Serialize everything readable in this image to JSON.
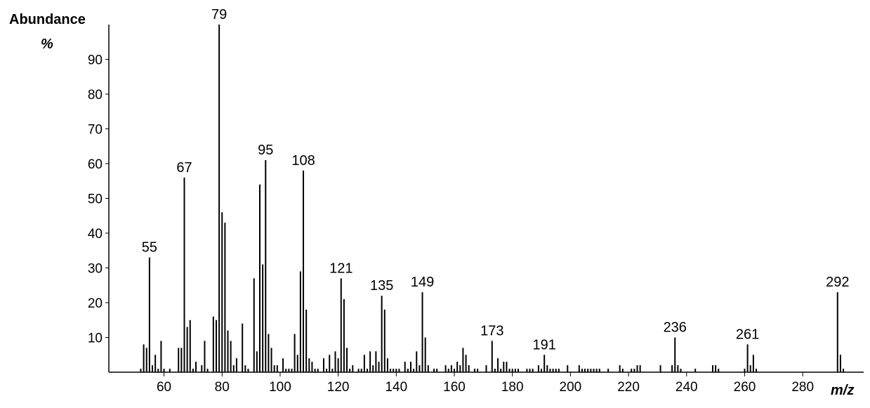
{
  "chart_data": {
    "type": "stick",
    "ylabel": "Abundance",
    "yunit": "%",
    "xlabel": "m/z",
    "color": "#000000",
    "xlim": [
      41,
      301
    ],
    "xticks": [
      60,
      80,
      100,
      120,
      140,
      160,
      180,
      200,
      220,
      240,
      260,
      280
    ],
    "ylim": [
      0,
      100
    ],
    "yticks": [
      10,
      20,
      30,
      40,
      50,
      60,
      70,
      80,
      90
    ],
    "x": [
      52,
      53,
      54,
      55,
      56,
      57,
      58,
      59,
      60,
      62,
      65,
      66,
      67,
      68,
      69,
      70,
      71,
      73,
      74,
      75,
      77,
      78,
      79,
      80,
      81,
      82,
      83,
      84,
      85,
      87,
      88,
      89,
      91,
      92,
      93,
      94,
      95,
      96,
      97,
      98,
      99,
      101,
      102,
      103,
      104,
      105,
      106,
      107,
      108,
      109,
      110,
      111,
      112,
      113,
      115,
      116,
      117,
      118,
      119,
      120,
      121,
      122,
      123,
      124,
      125,
      127,
      128,
      129,
      130,
      131,
      132,
      133,
      134,
      135,
      136,
      137,
      138,
      139,
      140,
      141,
      143,
      144,
      145,
      146,
      147,
      148,
      149,
      150,
      151,
      153,
      154,
      157,
      158,
      159,
      160,
      161,
      162,
      163,
      164,
      165,
      167,
      168,
      171,
      173,
      174,
      175,
      176,
      177,
      178,
      179,
      180,
      181,
      182,
      185,
      186,
      187,
      189,
      190,
      191,
      192,
      193,
      194,
      195,
      196,
      199,
      203,
      204,
      205,
      206,
      207,
      208,
      209,
      210,
      213,
      217,
      218,
      221,
      222,
      223,
      224,
      231,
      235,
      236,
      237,
      238,
      243,
      249,
      250,
      251,
      260,
      261,
      262,
      263,
      264,
      292,
      293,
      294
    ],
    "values": [
      1,
      8,
      7,
      33,
      2,
      5,
      1,
      9,
      1,
      1,
      7,
      7,
      56,
      13,
      15,
      1,
      3,
      2,
      9,
      1,
      16,
      15,
      100,
      46,
      43,
      12,
      9,
      2,
      4,
      14,
      2,
      1,
      27,
      6,
      54,
      31,
      61,
      11,
      7,
      2,
      2,
      4,
      1,
      1,
      1,
      11,
      5,
      29,
      58,
      18,
      4,
      3,
      1,
      1,
      4,
      1,
      5,
      1,
      6,
      4,
      27,
      21,
      7,
      1,
      2,
      1,
      1,
      5,
      1,
      6,
      2,
      6,
      3,
      22,
      18,
      4,
      1,
      1,
      1,
      1,
      3,
      1,
      3,
      1,
      6,
      2,
      23,
      10,
      2,
      1,
      1,
      2,
      1,
      2,
      1,
      3,
      2,
      7,
      5,
      2,
      1,
      1,
      2,
      9,
      1,
      4,
      1,
      3,
      3,
      1,
      1,
      1,
      1,
      1,
      1,
      1,
      2,
      1,
      5,
      2,
      1,
      1,
      1,
      1,
      2,
      2,
      1,
      1,
      1,
      1,
      1,
      1,
      1,
      1,
      2,
      1,
      1,
      1,
      2,
      2,
      2,
      2,
      10,
      2,
      1,
      1,
      2,
      2,
      1,
      1,
      8,
      2,
      5,
      1,
      23,
      5,
      1
    ],
    "labeled_peaks": [
      55,
      67,
      79,
      95,
      108,
      121,
      135,
      149,
      173,
      191,
      236,
      261,
      292
    ]
  }
}
